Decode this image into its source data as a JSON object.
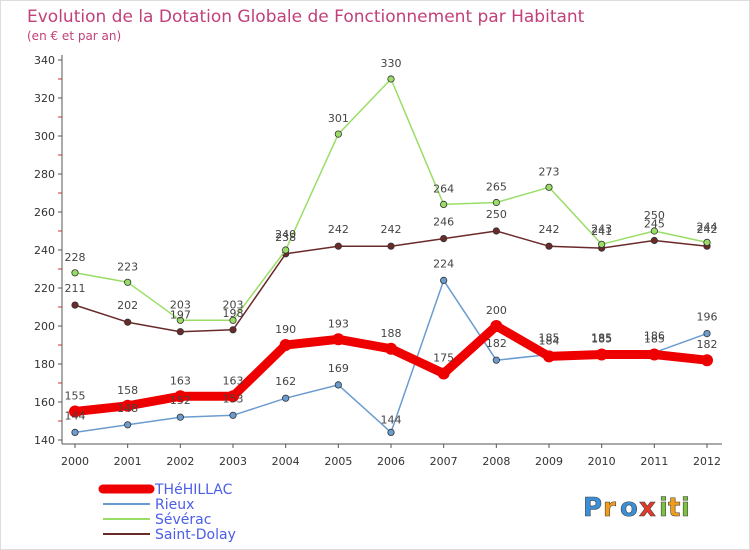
{
  "chart_data": {
    "type": "line",
    "title": "Evolution de la Dotation Globale de Fonctionnement par Habitant",
    "subtitle": "(en € et par an)",
    "categories": [
      "2000",
      "2001",
      "2002",
      "2003",
      "2004",
      "2005",
      "2006",
      "2007",
      "2008",
      "2009",
      "2010",
      "2011",
      "2012"
    ],
    "ylim": [
      140,
      340
    ],
    "yticks": [
      140,
      160,
      180,
      200,
      220,
      240,
      260,
      280,
      300,
      320,
      340
    ],
    "grid": false,
    "legend_position": "bottom-left",
    "series": [
      {
        "name": "THéHILLAC",
        "color": "#ee0000",
        "values": [
          155,
          158,
          163,
          163,
          190,
          193,
          188,
          175,
          200,
          184,
          185,
          185,
          182
        ],
        "labels": [
          "155",
          "158",
          "163",
          "163",
          "190",
          "193",
          "188",
          "175",
          "200",
          "184",
          "185",
          "185",
          "182"
        ]
      },
      {
        "name": "Rieux",
        "color": "#6b9ccf",
        "values": [
          144,
          148,
          152,
          153,
          162,
          169,
          144,
          224,
          182,
          185,
          185,
          186,
          196
        ],
        "labels": [
          "144",
          "148",
          "152",
          "153",
          "162",
          "169",
          "144",
          "224",
          "182",
          "185",
          "185",
          "186",
          "196"
        ]
      },
      {
        "name": "Sévérac",
        "color": "#99dd66",
        "values": [
          228,
          223,
          203,
          203,
          240,
          301,
          330,
          264,
          265,
          273,
          243,
          250,
          244
        ],
        "labels": [
          "228",
          "223",
          "203",
          "203",
          "240",
          "301",
          "330",
          "264",
          "265",
          "273",
          "243",
          "250",
          "244"
        ]
      },
      {
        "name": "Saint-Dolay",
        "color": "#6b2a2a",
        "values": [
          211,
          202,
          197,
          198,
          238,
          242,
          242,
          246,
          250,
          242,
          241,
          245,
          242
        ],
        "labels": [
          "211",
          "202",
          "197",
          "198",
          "238",
          "242",
          "242",
          "246",
          "250",
          "242",
          "241",
          "245",
          "242"
        ]
      }
    ]
  },
  "logo": {
    "text": "Proxiti",
    "letters": [
      "P",
      "r",
      "o",
      "x",
      "i",
      "t",
      "i"
    ]
  }
}
